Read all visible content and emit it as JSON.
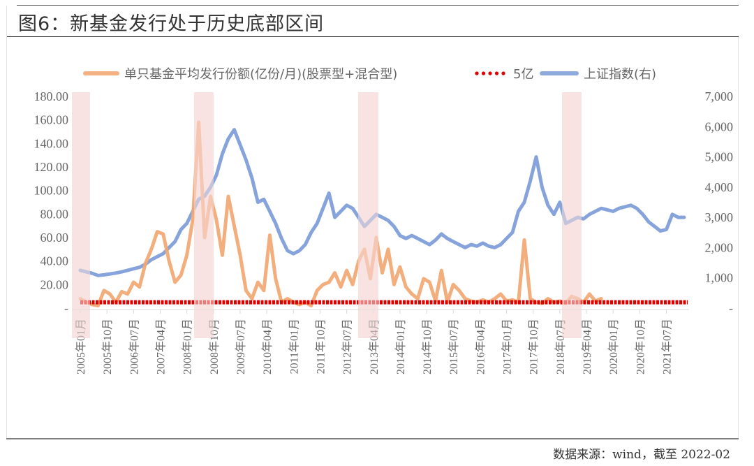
{
  "figure": {
    "title": "图6：新基金发行处于历史底部区间",
    "source": "数据来源：wind，截至 2022-02"
  },
  "legend": {
    "items": [
      {
        "label": "单只基金平均发行份额(亿份/月)(股票型+混合型)",
        "color": "#F4B183",
        "style": "line"
      },
      {
        "label": "5亿",
        "color": "#E00000",
        "style": "dotted"
      },
      {
        "label": "上证指数(右)",
        "color": "#8FAADC",
        "style": "line"
      }
    ]
  },
  "colors": {
    "fund": "#F2A773",
    "threshold": "#E00000",
    "index": "#7F9FD9",
    "band": "#F9E4E4",
    "axis": "#D9D9D9",
    "text": "#666666"
  },
  "chart_data": {
    "type": "line",
    "title": "图6：新基金发行处于历史底部区间",
    "xlabel": "",
    "ylabel_left": "单只基金平均发行份额(亿份/月)",
    "ylabel_right": "上证指数",
    "ylim_left": [
      0,
      180
    ],
    "ylim_right": [
      0,
      7000
    ],
    "yticks_left": [
      "-",
      "20.00",
      "40.00",
      "60.00",
      "80.00",
      "100.00",
      "120.00",
      "140.00",
      "160.00",
      "180.00"
    ],
    "yticks_right": [
      "-",
      "1,000",
      "2,000",
      "3,000",
      "4,000",
      "5,000",
      "6,000",
      "7,000"
    ],
    "xticks": [
      "2005年01月",
      "2005年10月",
      "2006年07月",
      "2007年04月",
      "2008年01月",
      "2008年10月",
      "2009年07月",
      "2010年04月",
      "2011年01月",
      "2011年10月",
      "2012年07月",
      "2013年04月",
      "2014年01月",
      "2014年10月",
      "2015年07月",
      "2016年04月",
      "2017年01月",
      "2017年10月",
      "2018年07月",
      "2019年04月",
      "2020年01月",
      "2020年10月",
      "2021年07月"
    ],
    "x_start": "2005-01",
    "x_end": "2022-02",
    "grid": false,
    "legend_position": "top",
    "shaded_periods": [
      {
        "start": "2005-01",
        "end": "2005-06"
      },
      {
        "start": "2008-03",
        "end": "2008-10"
      },
      {
        "start": "2012-12",
        "end": "2013-07"
      },
      {
        "start": "2018-02",
        "end": "2018-09"
      }
    ],
    "series": [
      {
        "name": "单只基金平均发行份额(亿份/月)(股票型+混合型)",
        "axis": "left",
        "points": [
          [
            0,
            8
          ],
          [
            2,
            5
          ],
          [
            4,
            3
          ],
          [
            6,
            2
          ],
          [
            8,
            15
          ],
          [
            10,
            12
          ],
          [
            12,
            5
          ],
          [
            14,
            14
          ],
          [
            16,
            12
          ],
          [
            18,
            22
          ],
          [
            20,
            18
          ],
          [
            22,
            38
          ],
          [
            24,
            50
          ],
          [
            26,
            65
          ],
          [
            28,
            63
          ],
          [
            30,
            40
          ],
          [
            32,
            22
          ],
          [
            34,
            28
          ],
          [
            36,
            45
          ],
          [
            38,
            75
          ],
          [
            40,
            158
          ],
          [
            42,
            60
          ],
          [
            44,
            95
          ],
          [
            46,
            75
          ],
          [
            48,
            45
          ],
          [
            50,
            95
          ],
          [
            52,
            70
          ],
          [
            54,
            45
          ],
          [
            56,
            15
          ],
          [
            58,
            8
          ],
          [
            60,
            22
          ],
          [
            62,
            15
          ],
          [
            64,
            62
          ],
          [
            66,
            25
          ],
          [
            68,
            5
          ],
          [
            70,
            8
          ],
          [
            72,
            5
          ],
          [
            74,
            3
          ],
          [
            76,
            5
          ],
          [
            78,
            2
          ],
          [
            80,
            15
          ],
          [
            82,
            20
          ],
          [
            84,
            22
          ],
          [
            86,
            30
          ],
          [
            88,
            18
          ],
          [
            90,
            32
          ],
          [
            92,
            20
          ],
          [
            94,
            40
          ],
          [
            96,
            50
          ],
          [
            98,
            25
          ],
          [
            100,
            60
          ],
          [
            102,
            30
          ],
          [
            104,
            50
          ],
          [
            106,
            20
          ],
          [
            108,
            35
          ],
          [
            110,
            18
          ],
          [
            112,
            12
          ],
          [
            114,
            8
          ],
          [
            116,
            25
          ],
          [
            118,
            22
          ],
          [
            120,
            6
          ],
          [
            122,
            32
          ],
          [
            124,
            5
          ],
          [
            126,
            20
          ],
          [
            128,
            15
          ],
          [
            130,
            8
          ],
          [
            132,
            6
          ],
          [
            134,
            5
          ],
          [
            136,
            7
          ],
          [
            138,
            5
          ],
          [
            140,
            8
          ],
          [
            142,
            12
          ],
          [
            144,
            6
          ],
          [
            146,
            7
          ],
          [
            148,
            5
          ],
          [
            150,
            58
          ],
          [
            152,
            8
          ],
          [
            154,
            5
          ],
          [
            156,
            4
          ],
          [
            158,
            8
          ],
          [
            160,
            5
          ],
          [
            162,
            6
          ],
          [
            164,
            4
          ],
          [
            166,
            10
          ],
          [
            168,
            8
          ],
          [
            170,
            5
          ],
          [
            172,
            12
          ],
          [
            174,
            6
          ],
          [
            176,
            8
          ]
        ]
      },
      {
        "name": "5亿",
        "axis": "left",
        "constant": 5
      },
      {
        "name": "上证指数(右)",
        "axis": "right",
        "points": [
          [
            0,
            1250
          ],
          [
            2,
            1200
          ],
          [
            4,
            1150
          ],
          [
            6,
            1080
          ],
          [
            8,
            1100
          ],
          [
            10,
            1130
          ],
          [
            12,
            1160
          ],
          [
            14,
            1200
          ],
          [
            16,
            1250
          ],
          [
            18,
            1300
          ],
          [
            20,
            1350
          ],
          [
            22,
            1450
          ],
          [
            24,
            1600
          ],
          [
            26,
            1700
          ],
          [
            28,
            1800
          ],
          [
            30,
            2000
          ],
          [
            32,
            2200
          ],
          [
            34,
            2600
          ],
          [
            36,
            2800
          ],
          [
            38,
            3200
          ],
          [
            40,
            3600
          ],
          [
            42,
            3700
          ],
          [
            44,
            4000
          ],
          [
            46,
            4400
          ],
          [
            48,
            5100
          ],
          [
            50,
            5600
          ],
          [
            52,
            5900
          ],
          [
            54,
            5400
          ],
          [
            56,
            4900
          ],
          [
            58,
            4300
          ],
          [
            60,
            3500
          ],
          [
            62,
            3600
          ],
          [
            64,
            3200
          ],
          [
            66,
            2800
          ],
          [
            68,
            2300
          ],
          [
            70,
            1900
          ],
          [
            72,
            1800
          ],
          [
            74,
            1900
          ],
          [
            76,
            2100
          ],
          [
            78,
            2500
          ],
          [
            80,
            2800
          ],
          [
            82,
            3300
          ],
          [
            84,
            3800
          ],
          [
            86,
            3000
          ],
          [
            88,
            3200
          ],
          [
            90,
            3400
          ],
          [
            92,
            3300
          ],
          [
            94,
            3000
          ],
          [
            96,
            2700
          ],
          [
            98,
            2900
          ],
          [
            100,
            3100
          ],
          [
            102,
            3000
          ],
          [
            104,
            2900
          ],
          [
            106,
            2700
          ],
          [
            108,
            2400
          ],
          [
            110,
            2300
          ],
          [
            112,
            2400
          ],
          [
            114,
            2300
          ],
          [
            116,
            2200
          ],
          [
            118,
            2100
          ],
          [
            120,
            2250
          ],
          [
            122,
            2450
          ],
          [
            124,
            2300
          ],
          [
            126,
            2200
          ],
          [
            128,
            2100
          ],
          [
            130,
            2000
          ],
          [
            132,
            2100
          ],
          [
            134,
            2050
          ],
          [
            136,
            2150
          ],
          [
            138,
            2050
          ],
          [
            140,
            2000
          ],
          [
            142,
            2100
          ],
          [
            144,
            2300
          ],
          [
            146,
            2500
          ],
          [
            148,
            3200
          ],
          [
            150,
            3500
          ],
          [
            152,
            4200
          ],
          [
            154,
            5000
          ],
          [
            156,
            4000
          ],
          [
            158,
            3400
          ],
          [
            160,
            3100
          ],
          [
            162,
            3500
          ],
          [
            164,
            2800
          ],
          [
            166,
            2900
          ],
          [
            168,
            3000
          ],
          [
            170,
            2950
          ],
          [
            172,
            3100
          ],
          [
            174,
            3200
          ],
          [
            176,
            3300
          ],
          [
            178,
            3250
          ],
          [
            180,
            3200
          ],
          [
            182,
            3300
          ],
          [
            184,
            3350
          ],
          [
            186,
            3400
          ],
          [
            188,
            3300
          ],
          [
            190,
            3100
          ],
          [
            192,
            2850
          ],
          [
            194,
            2700
          ],
          [
            196,
            2550
          ],
          [
            198,
            2600
          ],
          [
            200,
            3100
          ],
          [
            202,
            3000
          ],
          [
            204,
            3000
          ]
        ]
      }
    ]
  }
}
